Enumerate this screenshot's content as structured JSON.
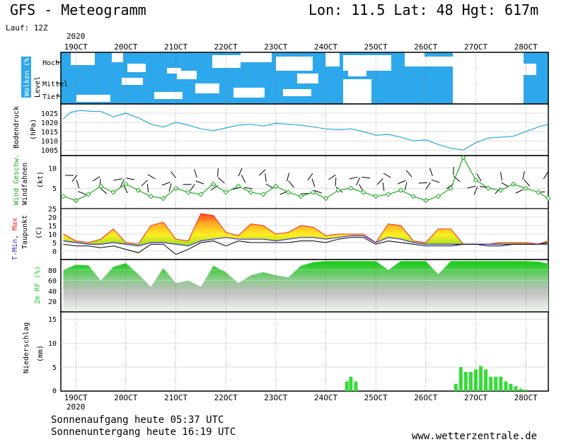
{
  "header": {
    "title": "GFS - Meteogramm",
    "location": "Lon: 11.5 Lat: 48 Hgt: 617m",
    "run": "Lauf: 12Z"
  },
  "footer": {
    "sunrise": "Sonnenaufgang heute 05:37 UTC",
    "sunset": "Sonnenuntergang heute 16:19 UTC",
    "site": "www.wetterzentrale.de"
  },
  "colors": {
    "cloud": "#2ea8ec",
    "pressure_line": "#2aa8d8",
    "wind_line": "#22aa22",
    "tmin": "#3333cc",
    "tmax": "#ff2222",
    "dewpoint": "#000000",
    "rh_fill": "#22cc22",
    "precip": "#33dd33"
  },
  "chart_data": {
    "type": "meteogram",
    "x_axis": {
      "year_label": "2020",
      "ticks": [
        "19OCT",
        "20OCT",
        "21OCT",
        "22OCT",
        "23OCT",
        "24OCT",
        "25OCT",
        "26OCT",
        "27OCT",
        "28OCT"
      ],
      "x_range_days": [
        18.7,
        28.45
      ]
    },
    "clouds": {
      "ylabel": "Wolken (%)",
      "sublabel": "Level",
      "levels": [
        "Hoch",
        "Mittel",
        "Tief"
      ]
    },
    "pressure": {
      "ylabel": "Bodendruck",
      "unit": "(hPa)",
      "ylim": [
        1002,
        1030
      ],
      "yticks": [
        1005,
        1010,
        1015,
        1020,
        1025
      ],
      "x": [
        18.75,
        18.9,
        19.1,
        19.3,
        19.5,
        19.75,
        20.0,
        20.25,
        20.5,
        20.75,
        21.0,
        21.25,
        21.5,
        21.75,
        22.0,
        22.25,
        22.5,
        22.75,
        23.0,
        23.25,
        23.5,
        23.75,
        24.0,
        24.25,
        24.5,
        24.75,
        25.0,
        25.25,
        25.5,
        25.75,
        26.0,
        26.25,
        26.5,
        26.75,
        27.0,
        27.25,
        27.5,
        27.75,
        28.0,
        28.25,
        28.45
      ],
      "values": [
        1022,
        1025.5,
        1026.5,
        1026,
        1026,
        1023,
        1025,
        1022.5,
        1019,
        1017.5,
        1020,
        1018.5,
        1016.5,
        1015.5,
        1017,
        1018.5,
        1019,
        1018,
        1019.5,
        1019,
        1018.5,
        1017.5,
        1016.5,
        1016,
        1016.5,
        1015,
        1013,
        1013.5,
        1012,
        1010,
        1010.5,
        1008,
        1006,
        1005,
        1009,
        1011.5,
        1012,
        1012.5,
        1015,
        1017.5,
        1019
      ]
    },
    "wind": {
      "ylabel": "Wind Geschw.",
      "sublabel": "Windfahnen",
      "unit": "(kt)",
      "ylim": [
        0,
        13
      ],
      "yticks": [
        5,
        10
      ],
      "x": [
        18.75,
        19.0,
        19.25,
        19.5,
        19.75,
        20.0,
        20.25,
        20.5,
        20.75,
        21.0,
        21.25,
        21.5,
        21.75,
        22.0,
        22.25,
        22.5,
        22.75,
        23.0,
        23.25,
        23.5,
        23.75,
        24.0,
        24.25,
        24.5,
        24.75,
        25.0,
        25.25,
        25.5,
        25.75,
        26.0,
        26.25,
        26.5,
        26.75,
        27.0,
        27.25,
        27.5,
        27.75,
        28.0,
        28.25,
        28.45
      ],
      "values": [
        3,
        2,
        3.5,
        5.5,
        4,
        6,
        4.5,
        3,
        2.5,
        5,
        4,
        3.5,
        6,
        4,
        5.5,
        4,
        3.5,
        5.5,
        4,
        3,
        4,
        2.5,
        4.5,
        5,
        4,
        3,
        3.5,
        4.5,
        3,
        2,
        3,
        5,
        12.5,
        7,
        5,
        4.5,
        6,
        5,
        4,
        2.5
      ]
    },
    "temperature": {
      "ylabel_parts": [
        "T-Min",
        ", ",
        "Max"
      ],
      "sublabel": "Taupunkt",
      "unit": "(C)",
      "ylim": [
        -5,
        25
      ],
      "yticks": [
        0,
        5,
        10,
        15,
        20,
        25
      ],
      "x": [
        18.75,
        19.0,
        19.25,
        19.5,
        19.75,
        20.0,
        20.25,
        20.5,
        20.75,
        21.0,
        21.25,
        21.5,
        21.75,
        22.0,
        22.25,
        22.5,
        22.75,
        23.0,
        23.25,
        23.5,
        23.75,
        24.0,
        24.25,
        24.5,
        24.75,
        25.0,
        25.25,
        25.5,
        25.75,
        26.0,
        26.25,
        26.5,
        26.75,
        27.0,
        27.25,
        27.5,
        27.75,
        28.0,
        28.25,
        28.45
      ],
      "tmax": [
        10,
        6,
        5,
        7,
        13,
        5,
        4,
        15,
        17,
        7,
        6,
        22,
        21,
        11,
        9,
        16,
        15,
        10,
        11,
        15,
        14,
        9,
        10,
        10,
        10,
        5,
        16,
        15,
        6,
        5,
        13,
        13,
        4,
        4,
        4,
        5,
        5,
        5,
        4,
        6
      ],
      "tmin": [
        6,
        5,
        4,
        4,
        5,
        4,
        3,
        5,
        5,
        4,
        3,
        6,
        7,
        8,
        7,
        7,
        7,
        6,
        7,
        8,
        8,
        7,
        8,
        9,
        9,
        5,
        8,
        7,
        5,
        4,
        4,
        4,
        4,
        4,
        4,
        4,
        4,
        4,
        4,
        4
      ],
      "dewpoint": [
        4,
        3,
        3,
        2,
        3,
        1,
        -1,
        4,
        4,
        -2,
        1,
        5,
        6,
        3,
        6,
        5,
        5,
        5,
        5,
        6,
        6,
        5,
        7,
        8,
        8,
        4,
        6,
        5,
        4,
        3,
        3,
        3,
        4,
        4,
        3,
        3,
        4,
        4,
        4,
        5
      ]
    },
    "humidity": {
      "ylabel": "2m RF (%)",
      "ylim": [
        0,
        100
      ],
      "yticks": [
        20,
        40,
        60,
        80
      ],
      "x": [
        18.75,
        19.0,
        19.25,
        19.5,
        19.75,
        20.0,
        20.25,
        20.5,
        20.75,
        21.0,
        21.25,
        21.5,
        21.75,
        22.0,
        22.25,
        22.5,
        22.75,
        23.0,
        23.25,
        23.5,
        23.75,
        24.0,
        24.25,
        24.5,
        24.75,
        25.0,
        25.25,
        25.5,
        25.75,
        26.0,
        26.25,
        26.5,
        26.75,
        27.0,
        27.25,
        27.5,
        27.75,
        28.0,
        28.25,
        28.45
      ],
      "values": [
        80,
        90,
        89,
        60,
        86,
        93,
        72,
        48,
        84,
        55,
        60,
        48,
        88,
        76,
        55,
        70,
        76,
        70,
        66,
        88,
        95,
        97,
        97,
        97,
        97,
        97,
        80,
        97,
        97,
        97,
        72,
        97,
        97,
        97,
        97,
        97,
        97,
        97,
        96,
        92
      ]
    },
    "precipitation": {
      "ylabel": "Niederschlag",
      "unit": "(mm)",
      "ylim": [
        0,
        16.5
      ],
      "yticks": [
        5,
        10,
        15
      ],
      "x": [
        24.42,
        24.5,
        24.6,
        26.6,
        26.7,
        26.8,
        26.9,
        27.0,
        27.1,
        27.2,
        27.3,
        27.4,
        27.5,
        27.6,
        27.7,
        27.8,
        27.9,
        28.0
      ],
      "values": [
        2,
        3,
        2,
        1.5,
        5,
        4,
        4,
        4.5,
        5.2,
        4.5,
        3,
        3,
        3,
        2,
        1.5,
        1,
        0.5,
        0.3
      ]
    }
  }
}
